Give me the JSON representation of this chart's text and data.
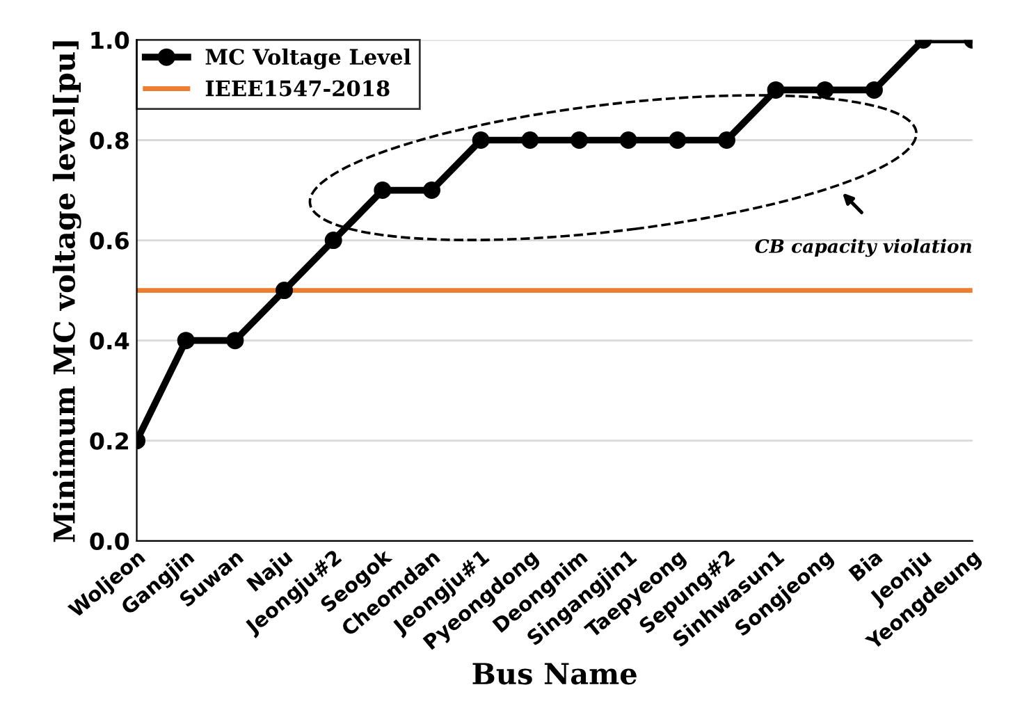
{
  "chart_data": {
    "type": "line",
    "xlabel": "Bus Name",
    "ylabel": "Minimum MC voltage level[pu]",
    "categories": [
      "Woljeon",
      "Gangjin",
      "Suwan",
      "Naju",
      "Jeongju#2",
      "Seogok",
      "Cheomdan",
      "Jeongju#1",
      "Pyeongdong",
      "Deongnim",
      "Singangjin1",
      "Taepyeong",
      "Sepung#2",
      "Sinhwasun1",
      "Songjeong",
      "Bia",
      "Jeonju",
      "Yeongdeung"
    ],
    "series": [
      {
        "name": "MC Voltage Level",
        "color": "#000000",
        "values": [
          0.2,
          0.4,
          0.4,
          0.5,
          0.6,
          0.7,
          0.7,
          0.8,
          0.8,
          0.8,
          0.8,
          0.8,
          0.8,
          0.9,
          0.9,
          0.9,
          1.0,
          1.0
        ]
      }
    ],
    "ref_lines": [
      {
        "axis": "y",
        "value": 0.5,
        "label": "IEEE1547-2018",
        "color": "#ed7d31"
      }
    ],
    "annotations": [
      "CB capacity violation"
    ],
    "ylim": [
      0,
      1.0
    ],
    "yticks": [
      {
        "value": 0,
        "label": "0.0"
      },
      {
        "value": 0.2,
        "label": "0.2"
      },
      {
        "value": 0.4,
        "label": "0.4"
      },
      {
        "value": 0.6,
        "label": "0.6"
      },
      {
        "value": 0.8,
        "label": "0.8"
      },
      {
        "value": 1.0,
        "label": "1.0"
      }
    ],
    "grid": "y",
    "legend": "top left",
    "marker": "circle",
    "line_style": "solid"
  }
}
